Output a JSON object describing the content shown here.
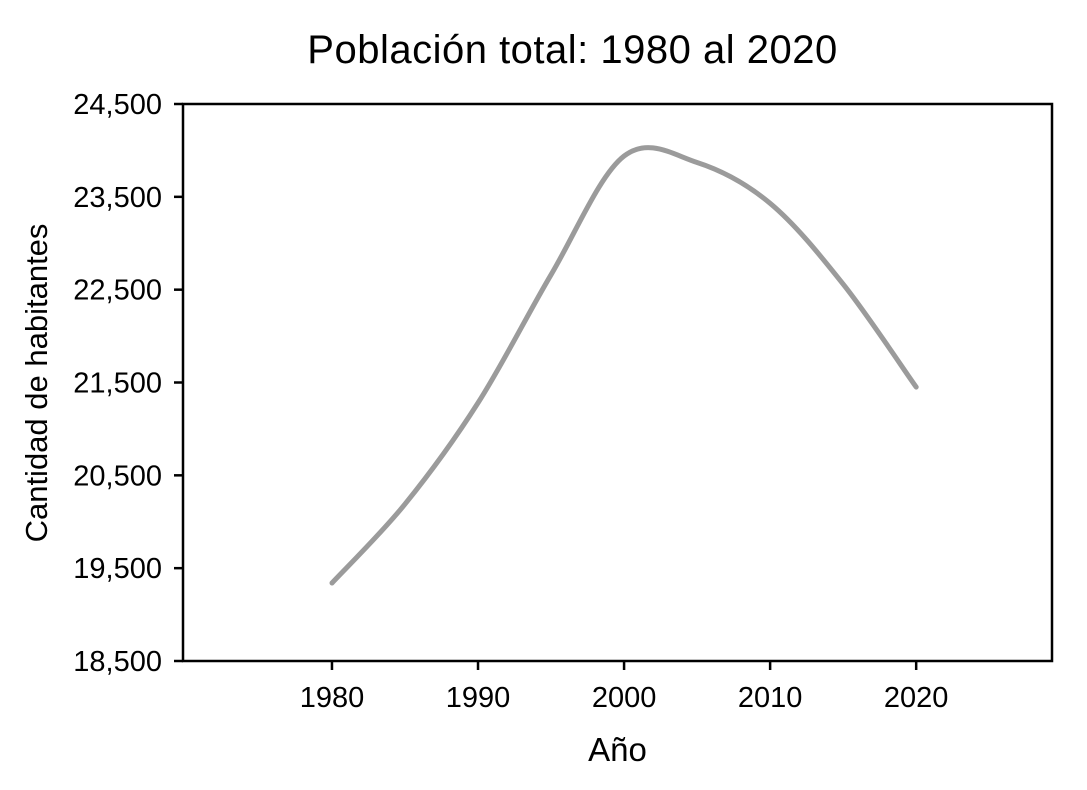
{
  "figure": {
    "background": "#ffffff",
    "text_color": "#000000"
  },
  "chart_data": {
    "type": "line",
    "title": "Población total: 1980 al 2020",
    "xlabel": "Año",
    "ylabel": "Cantidad de habitantes",
    "x": [
      1980,
      1985,
      1990,
      1995,
      2000,
      2005,
      2010,
      2015,
      2020
    ],
    "values": [
      19340,
      20190,
      21280,
      22660,
      23940,
      23870,
      23430,
      22560,
      21450
    ],
    "peak": {
      "year": 2002,
      "value": 24000
    },
    "xlim": [
      1969.8,
      2029.3
    ],
    "ylim": [
      18500,
      24500
    ],
    "x_ticks": [
      1980,
      1990,
      2000,
      2010,
      2020
    ],
    "x_tick_labels": [
      "1980",
      "1990",
      "2000",
      "2010",
      "2020"
    ],
    "y_ticks": [
      18500,
      19500,
      20500,
      21500,
      22500,
      23500,
      24500
    ],
    "y_tick_labels": [
      "18,500",
      "19,500",
      "20,500",
      "21,500",
      "22,500",
      "23,500",
      "24,500"
    ],
    "grid": false,
    "legend": "none",
    "line_color": "#9b9b9b",
    "line_width": 5,
    "axis_color": "#000000",
    "frame": true,
    "tick_direction": "out"
  }
}
